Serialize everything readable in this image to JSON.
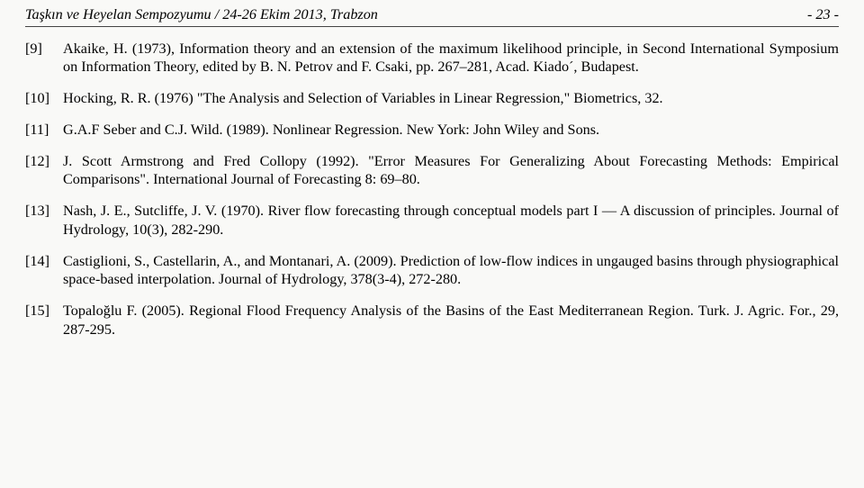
{
  "header": {
    "left": "Taşkın ve Heyelan Sempozyumu / 24-26 Ekim 2013, Trabzon",
    "right": "- 23 -"
  },
  "references": [
    {
      "num": "[9]",
      "text": "Akaike, H. (1973), Information theory and an extension of the maximum likelihood principle, in Second International Symposium on Information Theory, edited by B. N. Petrov and F. Csaki, pp. 267–281, Acad. Kiado´, Budapest."
    },
    {
      "num": "[10]",
      "text": "Hocking, R. R. (1976) \"The Analysis and Selection of Variables in Linear Regression,\" Biometrics, 32."
    },
    {
      "num": "[11]",
      "text": "G.A.F Seber and C.J. Wild. (1989). Nonlinear Regression. New York: John Wiley and Sons."
    },
    {
      "num": "[12]",
      "text": "J. Scott Armstrong and Fred Collopy (1992). \"Error Measures For Generalizing About Forecasting Methods: Empirical Comparisons\". International Journal of Forecasting 8: 69–80."
    },
    {
      "num": "[13]",
      "text": "Nash, J. E., Sutcliffe, J. V. (1970). River flow forecasting through conceptual models part I — A discussion of principles. Journal of Hydrology, 10(3), 282-290."
    },
    {
      "num": "[14]",
      "text": "Castiglioni, S., Castellarin, A., and Montanari, A. (2009). Prediction of low-flow indices in ungauged basins through physiographical space-based interpolation. Journal of Hydrology, 378(3-4), 272-280."
    },
    {
      "num": "[15]",
      "text": "Topaloğlu F. (2005). Regional Flood Frequency Analysis of the Basins of the East Mediterranean Region. Turk. J. Agric. For., 29, 287-295."
    }
  ]
}
